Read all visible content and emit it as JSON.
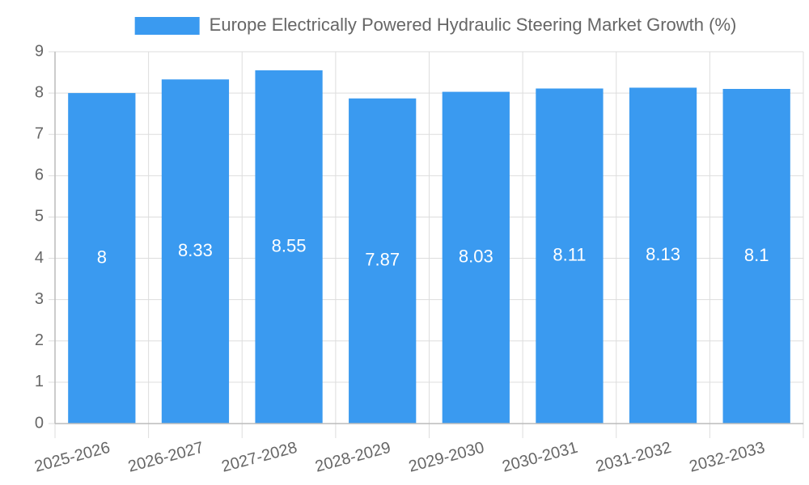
{
  "chart_data": {
    "type": "bar",
    "title": "",
    "xlabel": "",
    "ylabel": "",
    "categories": [
      "2025-2026",
      "2026-2027",
      "2027-2028",
      "2028-2029",
      "2029-2030",
      "2030-2031",
      "2031-2032",
      "2032-2033"
    ],
    "series": [
      {
        "name": "Europe Electrically Powered Hydraulic Steering Market Growth (%)",
        "values": [
          8,
          8.33,
          8.55,
          7.87,
          8.03,
          8.11,
          8.13,
          8.1
        ],
        "data_labels": [
          "8",
          "8.33",
          "8.55",
          "7.87",
          "8.03",
          "8.11",
          "8.13",
          "8.1"
        ],
        "color": "#3a9af0"
      }
    ],
    "ylim": [
      0,
      9
    ],
    "yticks": [
      "0",
      "1",
      "2",
      "3",
      "4",
      "5",
      "6",
      "7",
      "8",
      "9"
    ],
    "grid": true,
    "legend_position": "top-center",
    "gridline_color": "#dddddd",
    "axis_color": "#bbbbbb"
  }
}
